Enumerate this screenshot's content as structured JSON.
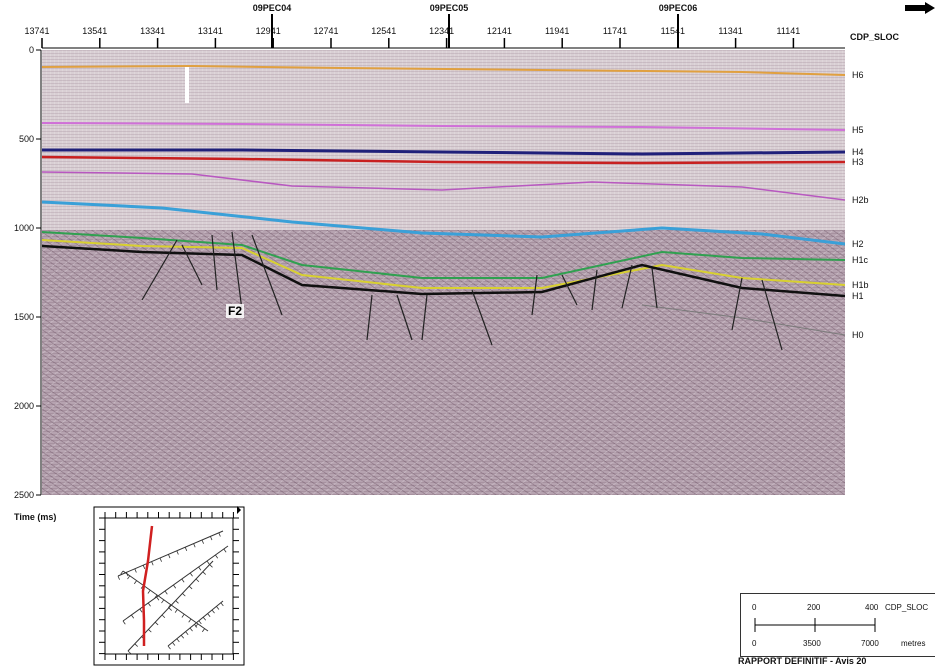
{
  "cdp_axis": {
    "label": "CDP_SLOC",
    "ticks": [
      "13741",
      "13541",
      "13341",
      "13141",
      "12941",
      "12741",
      "12541",
      "12341",
      "12141",
      "11941",
      "11741",
      "11541",
      "11341",
      "11141"
    ]
  },
  "wells": [
    "09PEC04",
    "09PEC05",
    "09PEC06"
  ],
  "time_axis": {
    "label": "Time (ms)",
    "ticks": [
      "0",
      "500",
      "1000",
      "1500",
      "2000",
      "2500"
    ]
  },
  "horizons": [
    {
      "name": "H6",
      "color": "#e0a040"
    },
    {
      "name": "H5",
      "color": "#d070d8"
    },
    {
      "name": "H4",
      "color": "#20207a"
    },
    {
      "name": "H3",
      "color": "#c82020"
    },
    {
      "name": "H2b",
      "color": "#b858c0"
    },
    {
      "name": "H2",
      "color": "#3aa0d8"
    },
    {
      "name": "H1c",
      "color": "#30a050"
    },
    {
      "name": "H1b",
      "color": "#d8d030"
    },
    {
      "name": "H1",
      "color": "#101010"
    },
    {
      "name": "H0",
      "color": "#7a7a7a"
    }
  ],
  "fault_label": "F2",
  "scale_bar": {
    "top_ticks": [
      "0",
      "200",
      "400"
    ],
    "top_unit": "CDP_SLOC",
    "bottom_ticks": [
      "0",
      "3500",
      "7000"
    ],
    "bottom_unit": "metres"
  },
  "footer": "RAPPORT DEFINITIF - Avis 20"
}
